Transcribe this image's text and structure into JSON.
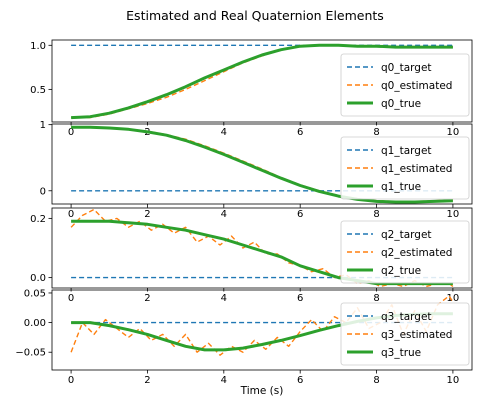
{
  "figure": {
    "title": "Estimated and Real Quaternion Elements",
    "xlabel": "Time (s)"
  },
  "colors": {
    "target": "#1f77b4",
    "estimated": "#ff7f0e",
    "true": "#2ca02c"
  },
  "chart_data": [
    {
      "type": "line",
      "xlim": [
        -0.5,
        10.5
      ],
      "ylim": [
        0.13,
        1.06
      ],
      "x_ticks": [
        0,
        2,
        4,
        6,
        8,
        10
      ],
      "y_ticks": [
        {
          "v": 0.5,
          "label": "0.5"
        },
        {
          "v": 1.0,
          "label": "1.0"
        }
      ],
      "legend": "right",
      "series": [
        {
          "name": "q0_target",
          "role": "target",
          "x": [
            0,
            10
          ],
          "y": [
            1.0,
            1.0
          ]
        },
        {
          "name": "q0_estimated",
          "role": "estimated",
          "x": [
            0,
            0.5,
            1,
            1.5,
            2,
            2.5,
            3,
            3.5,
            4,
            4.5,
            5,
            5.5,
            6,
            6.5,
            7,
            7.5,
            8,
            8.5,
            9,
            9.5,
            10
          ],
          "y": [
            0.18,
            0.18,
            0.22,
            0.28,
            0.34,
            0.41,
            0.5,
            0.6,
            0.7,
            0.8,
            0.88,
            0.95,
            0.99,
            1.0,
            1.0,
            0.99,
            0.99,
            0.98,
            0.98,
            0.98,
            0.98
          ]
        },
        {
          "name": "q0_true",
          "role": "true",
          "x": [
            0,
            0.5,
            1,
            1.5,
            2,
            2.5,
            3,
            3.5,
            4,
            4.5,
            5,
            5.5,
            6,
            6.5,
            7,
            7.5,
            8,
            8.5,
            9,
            9.5,
            10
          ],
          "y": [
            0.18,
            0.19,
            0.23,
            0.29,
            0.36,
            0.44,
            0.53,
            0.63,
            0.72,
            0.81,
            0.89,
            0.95,
            0.99,
            1.0,
            1.0,
            0.99,
            0.99,
            0.98,
            0.98,
            0.98,
            0.98
          ]
        }
      ]
    },
    {
      "type": "line",
      "xlim": [
        -0.5,
        10.5
      ],
      "ylim": [
        -0.2,
        1.01
      ],
      "x_ticks": [
        0,
        2,
        4,
        6,
        8,
        10
      ],
      "y_ticks": [
        {
          "v": 0,
          "label": "0"
        },
        {
          "v": 1,
          "label": "1"
        }
      ],
      "legend": "right",
      "series": [
        {
          "name": "q1_target",
          "role": "target",
          "x": [
            0,
            10
          ],
          "y": [
            0,
            0
          ]
        },
        {
          "name": "q1_estimated",
          "role": "estimated",
          "x": [
            0,
            0.5,
            1,
            1.5,
            2,
            2.5,
            3,
            3.5,
            4,
            4.5,
            5,
            5.5,
            6,
            6.5,
            7,
            7.5,
            8,
            8.5,
            9,
            9.5,
            10
          ],
          "y": [
            0.96,
            0.96,
            0.95,
            0.93,
            0.9,
            0.85,
            0.78,
            0.68,
            0.57,
            0.45,
            0.33,
            0.2,
            0.09,
            0.0,
            -0.07,
            -0.12,
            -0.15,
            -0.16,
            -0.16,
            -0.15,
            -0.14
          ]
        },
        {
          "name": "q1_true",
          "role": "true",
          "x": [
            0,
            0.5,
            1,
            1.5,
            2,
            2.5,
            3,
            3.5,
            4,
            4.5,
            5,
            5.5,
            6,
            6.5,
            7,
            7.5,
            8,
            8.5,
            9,
            9.5,
            10
          ],
          "y": [
            0.96,
            0.96,
            0.95,
            0.93,
            0.89,
            0.84,
            0.76,
            0.66,
            0.55,
            0.43,
            0.31,
            0.19,
            0.08,
            -0.01,
            -0.08,
            -0.13,
            -0.16,
            -0.17,
            -0.17,
            -0.16,
            -0.15
          ]
        }
      ]
    },
    {
      "type": "line",
      "xlim": [
        -0.5,
        10.5
      ],
      "ylim": [
        -0.035,
        0.235
      ],
      "x_ticks": [
        0,
        2,
        4,
        6,
        8,
        10
      ],
      "y_ticks": [
        {
          "v": 0,
          "label": "0.0"
        },
        {
          "v": 0.2,
          "label": "0.2"
        }
      ],
      "legend": "right",
      "series": [
        {
          "name": "q2_target",
          "role": "target",
          "x": [
            0,
            10
          ],
          "y": [
            0,
            0
          ]
        },
        {
          "name": "q2_estimated",
          "role": "estimated",
          "x": [
            0,
            0.3,
            0.6,
            0.9,
            1.2,
            1.5,
            1.8,
            2.1,
            2.4,
            2.7,
            3.0,
            3.3,
            3.6,
            3.9,
            4.2,
            4.5,
            4.8,
            5.1,
            5.4,
            5.7,
            6.0,
            6.3,
            6.6,
            6.9,
            7.2,
            7.5,
            7.8,
            8.1,
            8.4,
            8.7,
            9.0,
            9.3,
            9.6,
            9.9,
            10
          ],
          "y": [
            0.17,
            0.21,
            0.23,
            0.19,
            0.2,
            0.17,
            0.19,
            0.16,
            0.18,
            0.15,
            0.17,
            0.12,
            0.14,
            0.11,
            0.14,
            0.1,
            0.12,
            0.08,
            0.08,
            0.05,
            0.04,
            0.02,
            0.03,
            0.0,
            0.01,
            -0.02,
            -0.01,
            -0.03,
            -0.02,
            -0.03,
            -0.01,
            -0.03,
            -0.02,
            -0.02,
            -0.03
          ]
        },
        {
          "name": "q2_true",
          "role": "true",
          "x": [
            0,
            0.5,
            1,
            1.5,
            2,
            2.5,
            3,
            3.5,
            4,
            4.5,
            5,
            5.5,
            6,
            6.5,
            7,
            7.5,
            8,
            8.5,
            9,
            9.5,
            10
          ],
          "y": [
            0.19,
            0.19,
            0.19,
            0.185,
            0.18,
            0.17,
            0.16,
            0.145,
            0.13,
            0.11,
            0.09,
            0.07,
            0.04,
            0.02,
            0.0,
            -0.01,
            -0.02,
            -0.02,
            -0.02,
            -0.02,
            -0.02
          ]
        }
      ]
    },
    {
      "type": "line",
      "xlim": [
        -0.5,
        10.5
      ],
      "ylim": [
        -0.08,
        0.055
      ],
      "x_ticks": [
        0,
        2,
        4,
        6,
        8,
        10
      ],
      "y_ticks": [
        {
          "v": 0.05,
          "label": "0.05"
        },
        {
          "v": 0,
          "label": "0.00"
        },
        {
          "v": -0.05,
          "label": "−0.05"
        }
      ],
      "legend": "right",
      "series": [
        {
          "name": "q3_target",
          "role": "target",
          "x": [
            0,
            10
          ],
          "y": [
            0,
            0
          ]
        },
        {
          "name": "q3_estimated",
          "role": "estimated",
          "x": [
            0,
            0.3,
            0.6,
            0.9,
            1.2,
            1.5,
            1.8,
            2.1,
            2.4,
            2.7,
            3.0,
            3.3,
            3.6,
            3.9,
            4.2,
            4.5,
            4.8,
            5.1,
            5.4,
            5.7,
            6.0,
            6.3,
            6.6,
            6.9,
            7.2,
            7.5,
            7.8,
            8.1,
            8.4,
            8.7,
            9.0,
            9.3,
            9.6,
            9.9,
            10
          ],
          "y": [
            -0.05,
            0.0,
            -0.02,
            0.005,
            -0.01,
            -0.025,
            -0.01,
            -0.03,
            -0.02,
            -0.04,
            -0.02,
            -0.05,
            -0.035,
            -0.055,
            -0.04,
            -0.05,
            -0.03,
            -0.045,
            -0.025,
            -0.04,
            -0.015,
            0.005,
            -0.015,
            0.01,
            0.0,
            0.025,
            -0.01,
            0.0,
            0.03,
            -0.02,
            0.02,
            -0.015,
            0.03,
            0.045,
            0.035
          ]
        },
        {
          "name": "q3_true",
          "role": "true",
          "x": [
            0,
            0.5,
            1,
            1.5,
            2,
            2.5,
            3,
            3.5,
            4,
            4.5,
            5,
            5.5,
            6,
            6.5,
            7,
            7.5,
            8,
            8.5,
            9,
            9.5,
            10
          ],
          "y": [
            0.0,
            0.0,
            -0.005,
            -0.012,
            -0.02,
            -0.03,
            -0.04,
            -0.046,
            -0.046,
            -0.043,
            -0.037,
            -0.03,
            -0.022,
            -0.013,
            -0.005,
            0.002,
            0.008,
            0.012,
            0.014,
            0.015,
            0.015
          ]
        }
      ]
    }
  ]
}
